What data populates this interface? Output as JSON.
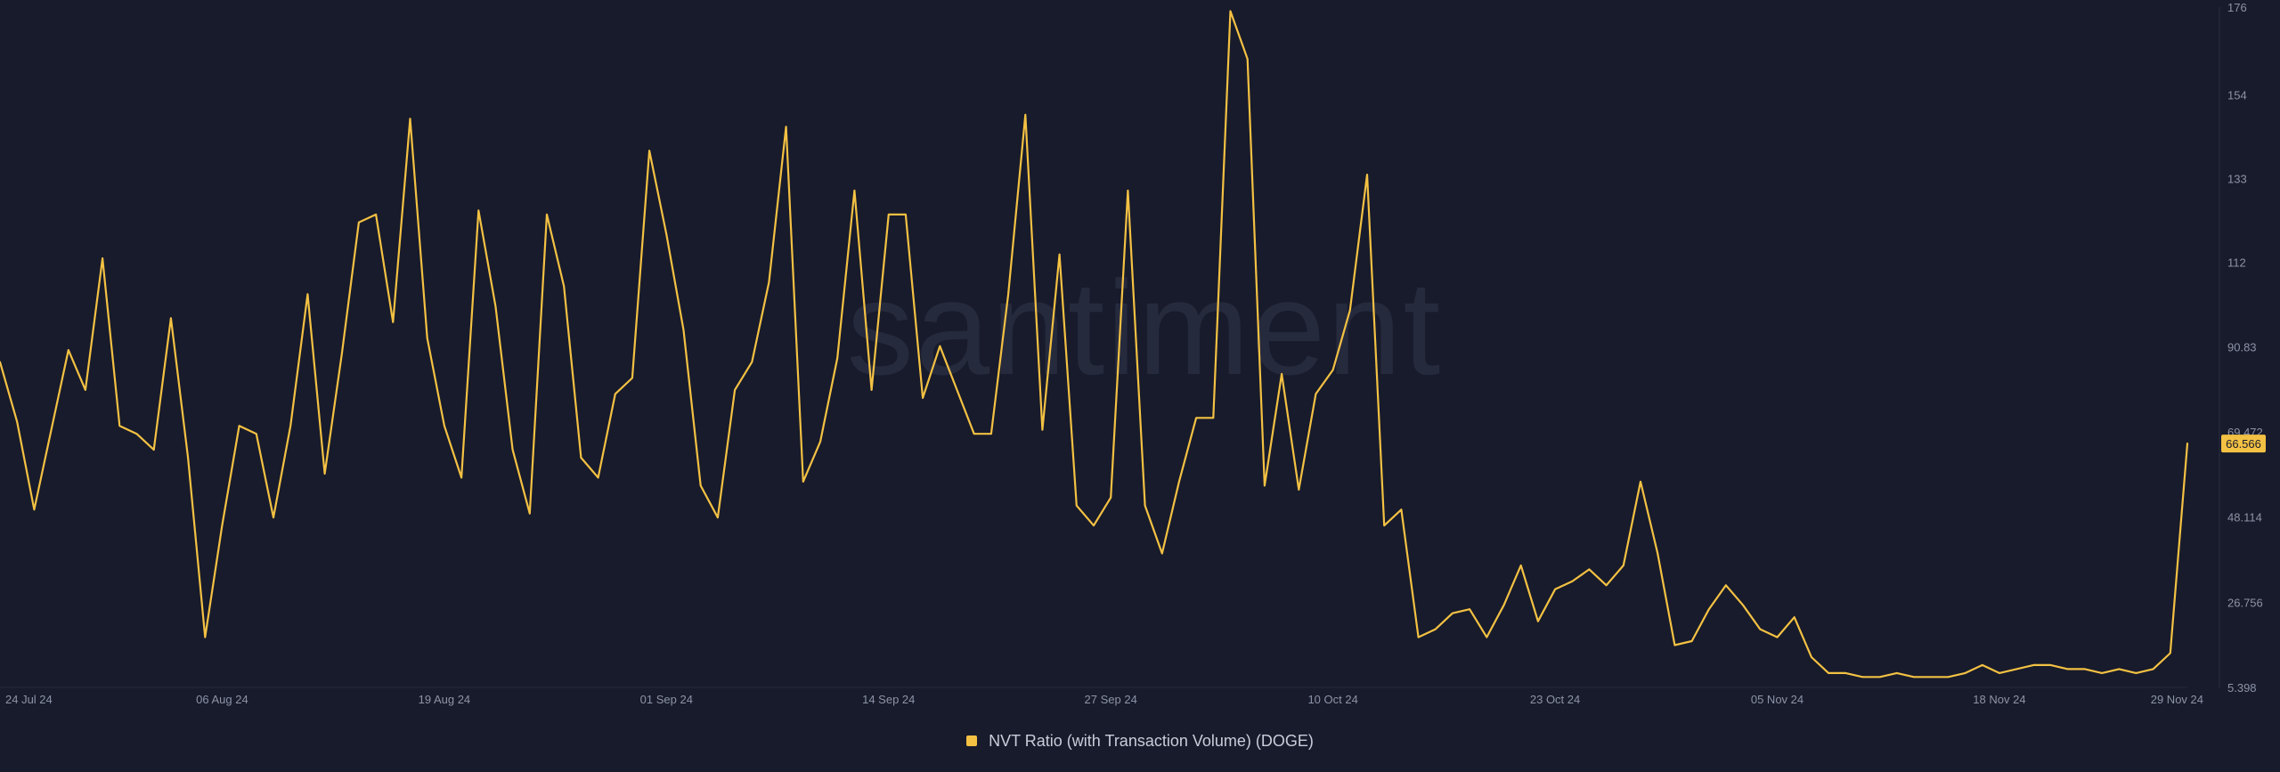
{
  "watermark": "santiment",
  "colors": {
    "background": "#181b2b",
    "line": "#f3c143",
    "badge_text": "#181b2b",
    "axis": "#8d93a8"
  },
  "chart_data": {
    "type": "line",
    "title": "",
    "xlabel": "",
    "ylabel": "",
    "legend_position": "bottom-center",
    "grid": false,
    "x_ticks": [
      "24 Jul 24",
      "06 Aug 24",
      "19 Aug 24",
      "01 Sep 24",
      "14 Sep 24",
      "27 Sep 24",
      "10 Oct 24",
      "23 Oct 24",
      "05 Nov 24",
      "18 Nov 24",
      "29 Nov 24"
    ],
    "y_ticks": [
      "5.398",
      "26.756",
      "48.114",
      "69.472",
      "90.83",
      "112",
      "133",
      "154",
      "176"
    ],
    "ylim": [
      5.398,
      176
    ],
    "xlim": [
      "2024-07-24",
      "2024-11-29"
    ],
    "last_value_label": "66.566",
    "series": [
      {
        "name": "NVT Ratio (with Transaction Volume) (DOGE)",
        "color": "#f3c143",
        "x": [
          "2024-07-24",
          "2024-07-25",
          "2024-07-26",
          "2024-07-27",
          "2024-07-28",
          "2024-07-29",
          "2024-07-30",
          "2024-07-31",
          "2024-08-01",
          "2024-08-02",
          "2024-08-03",
          "2024-08-04",
          "2024-08-05",
          "2024-08-06",
          "2024-08-07",
          "2024-08-08",
          "2024-08-09",
          "2024-08-10",
          "2024-08-11",
          "2024-08-12",
          "2024-08-13",
          "2024-08-14",
          "2024-08-15",
          "2024-08-16",
          "2024-08-17",
          "2024-08-18",
          "2024-08-19",
          "2024-08-20",
          "2024-08-21",
          "2024-08-22",
          "2024-08-23",
          "2024-08-24",
          "2024-08-25",
          "2024-08-26",
          "2024-08-27",
          "2024-08-28",
          "2024-08-29",
          "2024-08-30",
          "2024-08-31",
          "2024-09-01",
          "2024-09-02",
          "2024-09-03",
          "2024-09-04",
          "2024-09-05",
          "2024-09-06",
          "2024-09-07",
          "2024-09-08",
          "2024-09-09",
          "2024-09-10",
          "2024-09-11",
          "2024-09-12",
          "2024-09-13",
          "2024-09-14",
          "2024-09-15",
          "2024-09-16",
          "2024-09-17",
          "2024-09-18",
          "2024-09-19",
          "2024-09-20",
          "2024-09-21",
          "2024-09-22",
          "2024-09-23",
          "2024-09-24",
          "2024-09-25",
          "2024-09-26",
          "2024-09-27",
          "2024-09-28",
          "2024-09-29",
          "2024-09-30",
          "2024-10-01",
          "2024-10-02",
          "2024-10-03",
          "2024-10-04",
          "2024-10-05",
          "2024-10-06",
          "2024-10-07",
          "2024-10-08",
          "2024-10-09",
          "2024-10-10",
          "2024-10-11",
          "2024-10-12",
          "2024-10-13",
          "2024-10-14",
          "2024-10-15",
          "2024-10-16",
          "2024-10-17",
          "2024-10-18",
          "2024-10-19",
          "2024-10-20",
          "2024-10-21",
          "2024-10-22",
          "2024-10-23",
          "2024-10-24",
          "2024-10-25",
          "2024-10-26",
          "2024-10-27",
          "2024-10-28",
          "2024-10-29",
          "2024-10-30",
          "2024-10-31",
          "2024-11-01",
          "2024-11-02",
          "2024-11-03",
          "2024-11-04",
          "2024-11-05",
          "2024-11-06",
          "2024-11-07",
          "2024-11-08",
          "2024-11-09",
          "2024-11-10",
          "2024-11-11",
          "2024-11-12",
          "2024-11-13",
          "2024-11-14",
          "2024-11-15",
          "2024-11-16",
          "2024-11-17",
          "2024-11-18",
          "2024-11-19",
          "2024-11-20",
          "2024-11-21",
          "2024-11-22",
          "2024-11-23",
          "2024-11-24",
          "2024-11-25",
          "2024-11-26",
          "2024-11-27",
          "2024-11-28",
          "2024-11-29"
        ],
        "values": [
          87,
          72,
          50,
          70,
          90,
          80,
          113,
          71,
          69,
          65,
          98,
          63,
          18,
          46,
          71,
          69,
          48,
          71,
          104,
          59,
          89,
          122,
          124,
          97,
          148,
          93,
          71,
          58,
          125,
          101,
          65,
          49,
          124,
          106,
          63,
          58,
          79,
          83,
          140,
          119,
          95,
          56,
          48,
          80,
          87,
          107,
          146,
          57,
          67,
          88,
          130,
          80,
          124,
          124,
          78,
          91,
          80,
          69,
          69,
          104,
          149,
          70,
          114,
          51,
          46,
          53,
          130,
          51,
          39,
          57,
          73,
          73,
          175,
          163,
          56,
          84,
          55,
          79,
          85,
          100,
          134,
          46,
          50,
          18,
          20,
          24,
          25,
          18,
          26,
          36,
          22,
          30,
          32,
          35,
          31,
          36,
          57,
          39,
          16,
          17,
          25,
          31,
          26,
          20,
          18,
          23,
          13,
          9,
          9,
          8,
          8,
          9,
          8,
          8,
          8,
          9,
          11,
          9,
          10,
          11,
          11,
          10,
          10,
          9,
          10,
          9,
          10,
          14,
          66.566
        ]
      }
    ]
  }
}
